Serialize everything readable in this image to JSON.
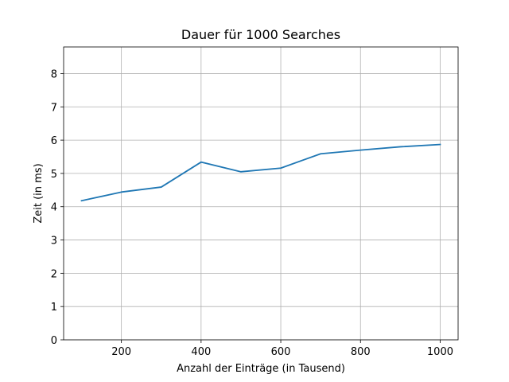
{
  "chart_data": {
    "type": "line",
    "title": "Dauer für 1000 Searches",
    "xlabel": "Anzahl der Einträge (in Tausend)",
    "ylabel": "Zeit (in ms)",
    "xlim": [
      55,
      1045
    ],
    "ylim": [
      0,
      8.8
    ],
    "xticks": [
      200,
      400,
      600,
      800,
      1000
    ],
    "yticks": [
      0,
      1,
      2,
      3,
      4,
      5,
      6,
      7,
      8
    ],
    "grid": true,
    "series": [
      {
        "color": "#1f77b4",
        "x": [
          100,
          200,
          300,
          400,
          500,
          600,
          700,
          800,
          900,
          1000
        ],
        "y": [
          4.18,
          4.44,
          4.59,
          5.34,
          5.05,
          5.16,
          5.59,
          5.7,
          5.8,
          5.87
        ]
      }
    ]
  },
  "colors": {
    "line": "#1f77b4",
    "grid": "#b0b0b0",
    "axes": "#000000"
  }
}
